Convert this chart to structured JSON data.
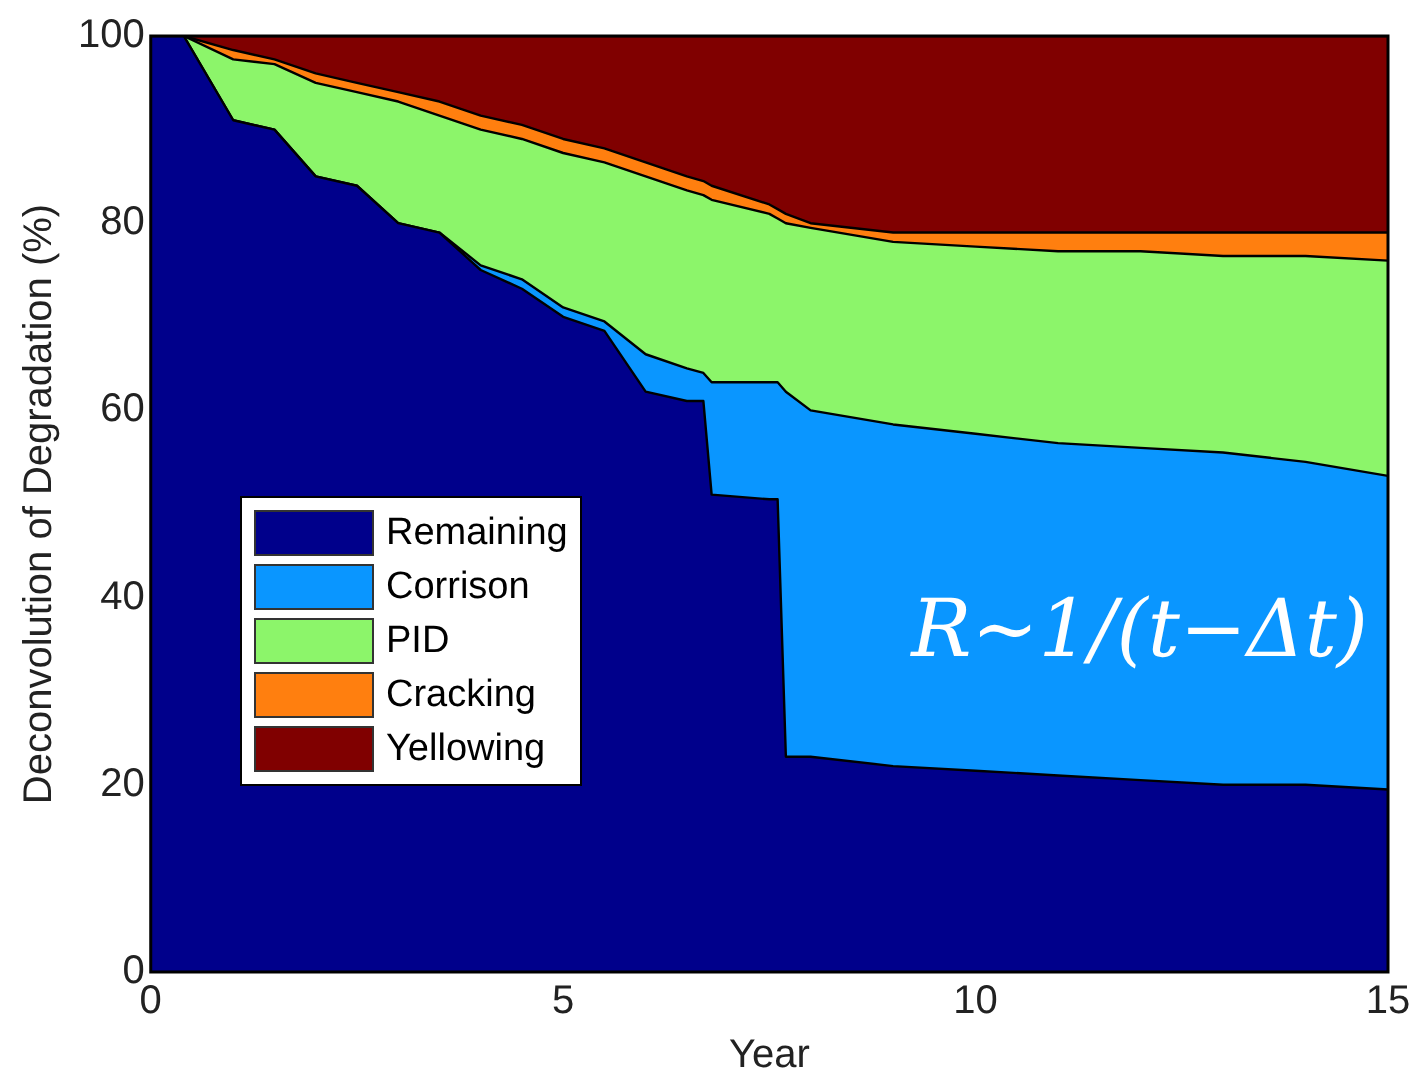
{
  "chart_data": {
    "type": "area",
    "stacked": true,
    "xlabel": "Year",
    "ylabel": "Deconvolution of Degradation (%)",
    "x": [
      0,
      0.4,
      1,
      1.5,
      2,
      2.5,
      3,
      3.5,
      4,
      4.5,
      5,
      5.5,
      6,
      6.5,
      6.7,
      6.8,
      7.5,
      7.6,
      7.7,
      8,
      9,
      10,
      11,
      12,
      13,
      14,
      15
    ],
    "series": [
      {
        "name": "Remaining",
        "color": "#00008b",
        "values": [
          100,
          100,
          91,
          90,
          85,
          84,
          80,
          79,
          75,
          73,
          70,
          68.5,
          62,
          61,
          61,
          51,
          50.5,
          50.5,
          23,
          23,
          22,
          21.5,
          21,
          20.5,
          20,
          20,
          19.5
        ]
      },
      {
        "name": "Corrison",
        "color": "#0a96ff",
        "values": [
          0,
          0,
          0,
          0,
          0,
          0,
          0,
          0,
          0.5,
          1,
          1,
          1,
          4,
          3.5,
          3,
          12,
          12.5,
          12.5,
          39,
          37,
          36.5,
          36,
          35.5,
          35.5,
          35.5,
          34.5,
          33.5
        ]
      },
      {
        "name": "PID",
        "color": "#8cf56a",
        "values": [
          0,
          0,
          6.5,
          7,
          10,
          10,
          13,
          12.5,
          14.5,
          15,
          16.5,
          17,
          19,
          19,
          19,
          19.5,
          18,
          17.5,
          18,
          19.5,
          19.5,
          20,
          20.5,
          21,
          21,
          22,
          23
        ]
      },
      {
        "name": "Cracking",
        "color": "#ff7f0f",
        "values": [
          0,
          0,
          1,
          0.5,
          1,
          1,
          1,
          1.5,
          1.5,
          1.5,
          1.5,
          1.5,
          1.5,
          1.5,
          1.5,
          1.5,
          1,
          1,
          1,
          0.5,
          1,
          1.5,
          2,
          2,
          2.5,
          2.5,
          3
        ]
      },
      {
        "name": "Yellowing",
        "color": "#800000",
        "values": [
          0,
          0,
          1.5,
          2.5,
          4,
          5,
          6,
          7,
          8.5,
          9.5,
          11,
          12,
          13.5,
          15,
          15.5,
          16,
          18,
          18.5,
          19,
          20,
          21,
          21,
          21,
          21,
          21,
          21,
          21
        ]
      }
    ],
    "xlim": [
      0,
      15
    ],
    "xticks": [
      0,
      5,
      10,
      15
    ],
    "ylim": [
      0,
      100
    ],
    "yticks": [
      0,
      20,
      40,
      60,
      80,
      100
    ],
    "legend": "bottom left",
    "annotations": [
      "R~1/(t−Δt)"
    ]
  }
}
